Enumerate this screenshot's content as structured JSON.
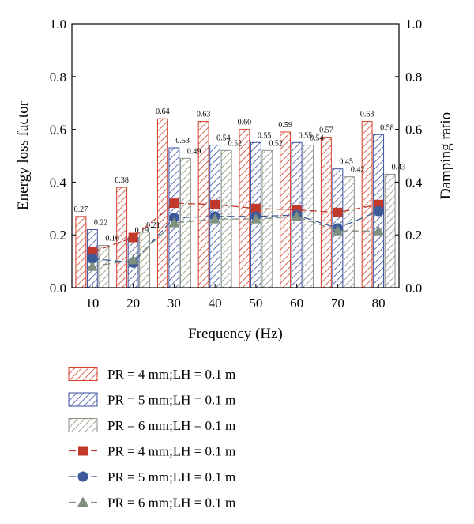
{
  "chart_data": {
    "type": "bar",
    "categories": [
      "10",
      "20",
      "30",
      "40",
      "50",
      "60",
      "70",
      "80"
    ],
    "xlabel": "Frequency (Hz)",
    "ylabel": "Energy loss factor",
    "y2label": "Damping ratio",
    "ylim": [
      0,
      1.0
    ],
    "y2lim": [
      0,
      1.0
    ],
    "yticks": [
      "0.0",
      "0.2",
      "0.4",
      "0.6",
      "0.8",
      "1.0"
    ],
    "y2ticks": [
      "0.0",
      "0.2",
      "0.4",
      "0.6",
      "0.8",
      "1.0"
    ],
    "grid": false,
    "legend_position": "below",
    "series": [
      {
        "name": "PR = 4 mm;LH = 0.1 m",
        "kind": "bar",
        "axis": "left",
        "color": "#d0402a",
        "hatch": "diagonal-right",
        "values": [
          0.27,
          0.38,
          0.64,
          0.63,
          0.6,
          0.59,
          0.57,
          0.63
        ],
        "labels": [
          "0.27",
          "0.38",
          "0.64",
          "0.63",
          "0.60",
          "0.59",
          "0.57",
          "0.63"
        ]
      },
      {
        "name": "PR = 5 mm;LH = 0.1 m",
        "kind": "bar",
        "axis": "left",
        "color": "#3a4fa0",
        "hatch": "diagonal-right",
        "values": [
          0.22,
          0.19,
          0.53,
          0.54,
          0.55,
          0.55,
          0.45,
          0.58
        ],
        "labels": [
          "0.22",
          "0.19",
          "0.53",
          "0.54",
          "0.55",
          "0.55",
          "0.45",
          "0.58"
        ]
      },
      {
        "name": "PR = 6 mm;LH = 0.1 m",
        "kind": "bar",
        "axis": "left",
        "color": "#8a9080",
        "hatch": "diagonal-right",
        "values": [
          0.16,
          0.21,
          0.49,
          0.52,
          0.52,
          0.54,
          0.42,
          0.43
        ],
        "labels": [
          "0.16",
          "0.21",
          "0.49",
          "0.52",
          "0.52",
          "0.54",
          "0.42",
          "0.43"
        ]
      },
      {
        "name": "PR = 4 mm;LH = 0.1 m",
        "kind": "line",
        "axis": "right",
        "color": "#c0392b",
        "marker": "square",
        "values": [
          0.135,
          0.19,
          0.32,
          0.315,
          0.3,
          0.295,
          0.285,
          0.315
        ]
      },
      {
        "name": "PR = 5 mm;LH = 0.1 m",
        "kind": "line",
        "axis": "right",
        "color": "#3d5a99",
        "marker": "circle",
        "values": [
          0.11,
          0.095,
          0.265,
          0.27,
          0.27,
          0.275,
          0.225,
          0.29
        ]
      },
      {
        "name": "PR = 6 mm;LH = 0.1 m",
        "kind": "line",
        "axis": "right",
        "color": "#7f8f80",
        "marker": "triangle",
        "values": [
          0.08,
          0.105,
          0.245,
          0.26,
          0.26,
          0.27,
          0.215,
          0.215
        ]
      }
    ]
  }
}
